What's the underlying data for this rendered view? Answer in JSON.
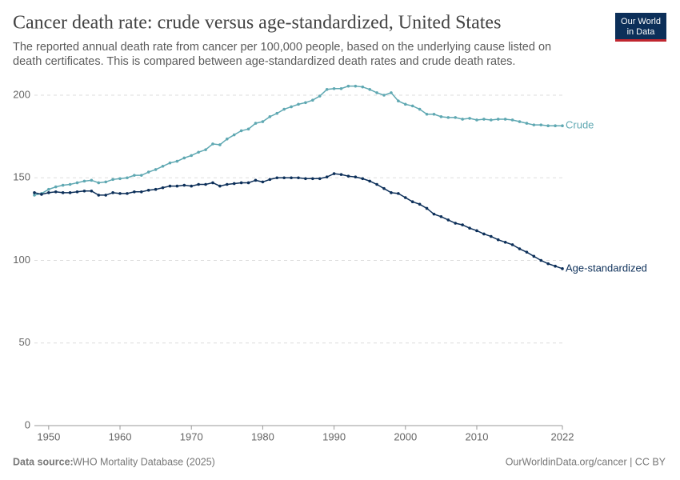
{
  "chart_data": {
    "type": "line",
    "title": "Cancer death rate: crude versus age-standardized, United States",
    "subtitle_lines": [
      "The reported annual death rate from cancer per 100,000 people, based on the underlying cause listed on",
      "death certificates. This is compared between age-standardized death rates and crude death rates."
    ],
    "logo_lines": [
      "Our World",
      "in Data"
    ],
    "source_label": "Data source:",
    "source": "WHO Mortality Database (2025)",
    "footer_right": "OurWorldinData.org/cancer | CC BY",
    "x": [
      1948,
      1949,
      1950,
      1951,
      1952,
      1953,
      1954,
      1955,
      1956,
      1957,
      1958,
      1959,
      1960,
      1961,
      1962,
      1963,
      1964,
      1965,
      1966,
      1967,
      1968,
      1969,
      1970,
      1971,
      1972,
      1973,
      1974,
      1975,
      1976,
      1977,
      1978,
      1979,
      1980,
      1981,
      1982,
      1983,
      1984,
      1985,
      1986,
      1987,
      1988,
      1989,
      1990,
      1991,
      1992,
      1993,
      1994,
      1995,
      1996,
      1997,
      1998,
      1999,
      2000,
      2001,
      2002,
      2003,
      2004,
      2005,
      2006,
      2007,
      2008,
      2009,
      2010,
      2011,
      2012,
      2013,
      2014,
      2015,
      2016,
      2017,
      2018,
      2019,
      2020,
      2021,
      2022
    ],
    "series": [
      {
        "name": "Crude",
        "color": "#5fa8b2",
        "values": [
          139.5,
          140.5,
          143,
          144.5,
          145.5,
          146,
          147,
          148,
          148.5,
          147,
          147.5,
          149,
          149.5,
          150,
          151.5,
          151.5,
          153.5,
          155,
          157,
          159,
          160,
          162,
          163.5,
          165.5,
          167,
          170.5,
          170,
          173.5,
          176,
          178.5,
          179.5,
          183,
          184,
          187,
          189,
          191.5,
          193,
          194.5,
          195.5,
          197,
          199.5,
          203.5,
          204,
          204,
          205.5,
          205.5,
          205,
          203.5,
          201.5,
          200,
          201.5,
          196.5,
          194.5,
          193.5,
          191.5,
          188.5,
          188.5,
          187,
          186.5,
          186.5,
          185.5,
          186,
          185,
          185.5,
          185,
          185.5,
          185.5,
          185,
          184,
          183,
          182,
          182,
          181.5,
          181.5,
          181.5
        ]
      },
      {
        "name": "Age-standardized",
        "color": "#0c2f59",
        "values": [
          141,
          140,
          141,
          141.5,
          141,
          141,
          141.5,
          142,
          142,
          139.5,
          139.5,
          141,
          140.5,
          140.5,
          141.5,
          141.5,
          142.5,
          143,
          144,
          145,
          145,
          145.5,
          145,
          146,
          146,
          147,
          145,
          146,
          146.5,
          147,
          147,
          148.5,
          147.5,
          149,
          150,
          150,
          150,
          150,
          149.5,
          149.5,
          149.5,
          150.5,
          152.5,
          152,
          151,
          150.5,
          149.5,
          148,
          146,
          143.5,
          141,
          140.5,
          138,
          135.5,
          134,
          131.5,
          128,
          126.5,
          124.5,
          122.5,
          121.5,
          119.5,
          118,
          116,
          114.5,
          112.5,
          111,
          109.5,
          107,
          105,
          102.5,
          100,
          98,
          96.5,
          95
        ]
      }
    ],
    "xlim": [
      1948,
      2022
    ],
    "xticks": [
      1950,
      1960,
      1970,
      1980,
      1990,
      2000,
      2010,
      2022
    ],
    "ylim": [
      0,
      200
    ],
    "yticks": [
      0,
      50,
      100,
      150,
      200
    ],
    "grid": true
  }
}
